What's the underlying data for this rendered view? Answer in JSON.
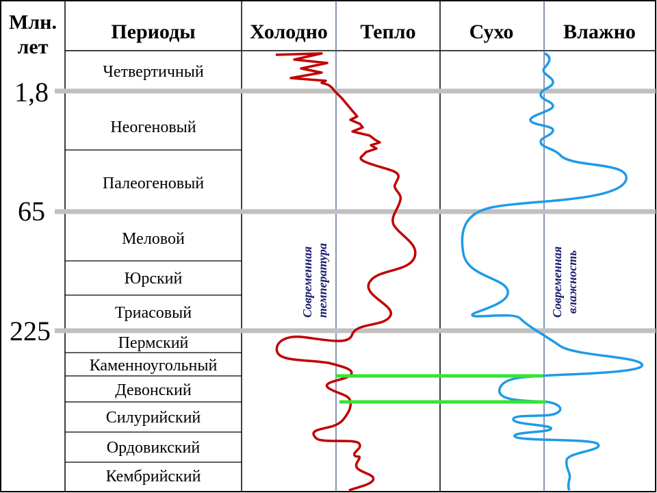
{
  "header": {
    "age_col": [
      "Млн.",
      "лет"
    ],
    "periods": "Периоды",
    "cold": "Холодно",
    "warm": "Тепло",
    "dry": "Сухо",
    "wet": "Влажно"
  },
  "periods": [
    "Четвертичный",
    "Неогеновый",
    "Палеогеновый",
    "Меловой",
    "Юрский",
    "Триасовый",
    "Пермский",
    "Каменноугольный",
    "Девонский",
    "Силурийский",
    "Ордовикский",
    "Кембрийский"
  ],
  "ages": [
    "1,8",
    "65",
    "225"
  ],
  "labels": {
    "modern_temperature": [
      "Современная",
      "температура"
    ],
    "modern_humidity": [
      "Современная",
      "влажность"
    ]
  },
  "colors": {
    "temperature_curve": "#c00000",
    "humidity_curve": "#1e9be6",
    "boundary_lines": "#c0c0c0",
    "marker_lines": "#33e633",
    "modern_reference_lines": "#4a5a8a"
  }
}
